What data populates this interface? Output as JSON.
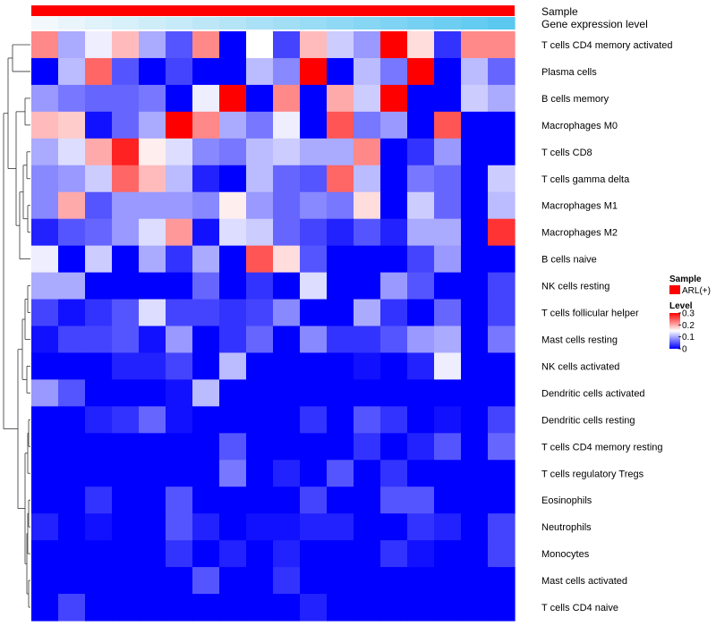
{
  "chart_data": {
    "type": "heatmap",
    "title": "",
    "color_scale": {
      "low": "#0000ff",
      "mid": "#ffffff",
      "high": "#ff0000",
      "min": 0,
      "mid_value": 0.15,
      "max": 0.3
    },
    "top_annotations": [
      {
        "name": "Sample",
        "color": "#ff0000",
        "gradient": false
      },
      {
        "name": "Gene expression level",
        "color_from": "#f2f8fb",
        "color_to": "#5bc8f0",
        "gradient": true
      }
    ],
    "legend": {
      "sample_title": "Sample",
      "sample_label": "ARL(+)",
      "sample_color": "#ff0000",
      "level_title": "Level",
      "ticks": [
        0.3,
        0.2,
        0.1,
        0
      ],
      "tick_labels": [
        "0.3",
        "0.2",
        "0.1",
        "0"
      ]
    },
    "rows": [
      "T cells CD4 memory activated",
      "Plasma cells",
      "B cells memory",
      "Macrophages M0",
      "T cells CD8",
      "T cells gamma delta",
      "Macrophages M1",
      "Macrophages M2",
      "B cells naive",
      "NK cells resting",
      "T cells follicular helper",
      "Mast cells resting",
      "NK cells activated",
      "Dendritic cells activated",
      "Dendritic cells resting",
      "T cells CD4 memory resting",
      "T cells regulatory  Tregs",
      "Eosinophils",
      "Neutrophils",
      "Monocytes",
      "Mast cells activated",
      "T cells CD4 naive"
    ],
    "n_columns": 18,
    "values": [
      [
        0.22,
        0.1,
        0.14,
        0.19,
        0.1,
        0.05,
        0.22,
        0.0,
        0.15,
        0.04,
        0.19,
        0.12,
        0.09,
        0.3,
        0.17,
        0.03,
        0.22,
        0.22
      ],
      [
        0.0,
        0.11,
        0.24,
        0.05,
        0.0,
        0.04,
        0.0,
        0.0,
        0.11,
        0.08,
        0.3,
        0.0,
        0.11,
        0.07,
        0.3,
        0.0,
        0.11,
        0.06
      ],
      [
        0.09,
        0.07,
        0.06,
        0.06,
        0.07,
        0.0,
        0.14,
        0.3,
        0.0,
        0.22,
        0.0,
        0.2,
        0.12,
        0.3,
        0.0,
        0.0,
        0.12,
        0.1
      ],
      [
        0.19,
        0.18,
        0.01,
        0.06,
        0.1,
        0.3,
        0.22,
        0.1,
        0.07,
        0.14,
        0.0,
        0.25,
        0.07,
        0.09,
        0.0,
        0.25,
        0.0,
        0.0
      ],
      [
        0.1,
        0.13,
        0.2,
        0.28,
        0.16,
        0.13,
        0.08,
        0.07,
        0.11,
        0.12,
        0.1,
        0.1,
        0.22,
        0.0,
        0.03,
        0.09,
        0.0,
        0.0
      ],
      [
        0.08,
        0.09,
        0.12,
        0.24,
        0.19,
        0.11,
        0.02,
        0.0,
        0.11,
        0.06,
        0.05,
        0.24,
        0.11,
        0.0,
        0.07,
        0.06,
        0.0,
        0.12
      ],
      [
        0.08,
        0.2,
        0.05,
        0.09,
        0.09,
        0.09,
        0.08,
        0.16,
        0.09,
        0.06,
        0.08,
        0.07,
        0.17,
        0.0,
        0.12,
        0.06,
        0.0,
        0.11
      ],
      [
        0.02,
        0.05,
        0.06,
        0.09,
        0.13,
        0.21,
        0.01,
        0.13,
        0.12,
        0.06,
        0.04,
        0.02,
        0.05,
        0.02,
        0.1,
        0.1,
        0.0,
        0.27
      ],
      [
        0.14,
        0.0,
        0.12,
        0.0,
        0.1,
        0.03,
        0.1,
        0.0,
        0.25,
        0.17,
        0.05,
        0.0,
        0.0,
        0.0,
        0.04,
        0.09,
        0.0,
        0.0
      ],
      [
        0.1,
        0.1,
        0.0,
        0.0,
        0.0,
        0.0,
        0.06,
        0.0,
        0.03,
        0.0,
        0.13,
        0.0,
        0.0,
        0.09,
        0.05,
        0.0,
        0.0,
        0.04
      ],
      [
        0.04,
        0.01,
        0.03,
        0.05,
        0.13,
        0.04,
        0.04,
        0.03,
        0.04,
        0.08,
        0.0,
        0.0,
        0.1,
        0.03,
        0.0,
        0.06,
        0.0,
        0.04
      ],
      [
        0.01,
        0.04,
        0.04,
        0.05,
        0.01,
        0.09,
        0.0,
        0.03,
        0.06,
        0.0,
        0.08,
        0.03,
        0.03,
        0.05,
        0.09,
        0.1,
        0.0,
        0.07
      ],
      [
        0.0,
        0.0,
        0.0,
        0.02,
        0.02,
        0.04,
        0.0,
        0.11,
        0.0,
        0.0,
        0.0,
        0.0,
        0.01,
        0.0,
        0.02,
        0.14,
        0.0,
        0.0
      ],
      [
        0.09,
        0.05,
        0.0,
        0.0,
        0.0,
        0.01,
        0.11,
        0.0,
        0.0,
        0.0,
        0.0,
        0.0,
        0.0,
        0.0,
        0.0,
        0.0,
        0.0,
        0.0
      ],
      [
        0.0,
        0.0,
        0.02,
        0.03,
        0.06,
        0.01,
        0.0,
        0.0,
        0.0,
        0.0,
        0.03,
        0.0,
        0.05,
        0.03,
        0.0,
        0.01,
        0.0,
        0.04
      ],
      [
        0.0,
        0.0,
        0.0,
        0.0,
        0.0,
        0.0,
        0.0,
        0.05,
        0.0,
        0.0,
        0.0,
        0.0,
        0.03,
        0.0,
        0.02,
        0.05,
        0.0,
        0.06
      ],
      [
        0.0,
        0.0,
        0.0,
        0.0,
        0.0,
        0.0,
        0.0,
        0.07,
        0.0,
        0.02,
        0.0,
        0.05,
        0.0,
        0.03,
        0.0,
        0.0,
        0.0,
        0.0
      ],
      [
        0.0,
        0.0,
        0.03,
        0.0,
        0.0,
        0.05,
        0.0,
        0.0,
        0.0,
        0.0,
        0.04,
        0.0,
        0.0,
        0.05,
        0.05,
        0.0,
        0.0,
        0.0
      ],
      [
        0.02,
        0.0,
        0.01,
        0.0,
        0.0,
        0.05,
        0.02,
        0.0,
        0.01,
        0.01,
        0.02,
        0.02,
        0.0,
        0.0,
        0.03,
        0.02,
        0.0,
        0.04
      ],
      [
        0.0,
        0.0,
        0.0,
        0.0,
        0.0,
        0.03,
        0.0,
        0.02,
        0.0,
        0.02,
        0.0,
        0.0,
        0.0,
        0.03,
        0.01,
        0.0,
        0.0,
        0.04
      ],
      [
        0.0,
        0.0,
        0.0,
        0.0,
        0.0,
        0.0,
        0.05,
        0.0,
        0.0,
        0.03,
        0.0,
        0.0,
        0.0,
        0.0,
        0.0,
        0.0,
        0.0,
        0.0
      ],
      [
        0.0,
        0.04,
        0.0,
        0.0,
        0.0,
        0.0,
        0.0,
        0.0,
        0.0,
        0.0,
        0.02,
        0.0,
        0.0,
        0.0,
        0.0,
        0.0,
        0.0,
        0.0
      ]
    ]
  }
}
